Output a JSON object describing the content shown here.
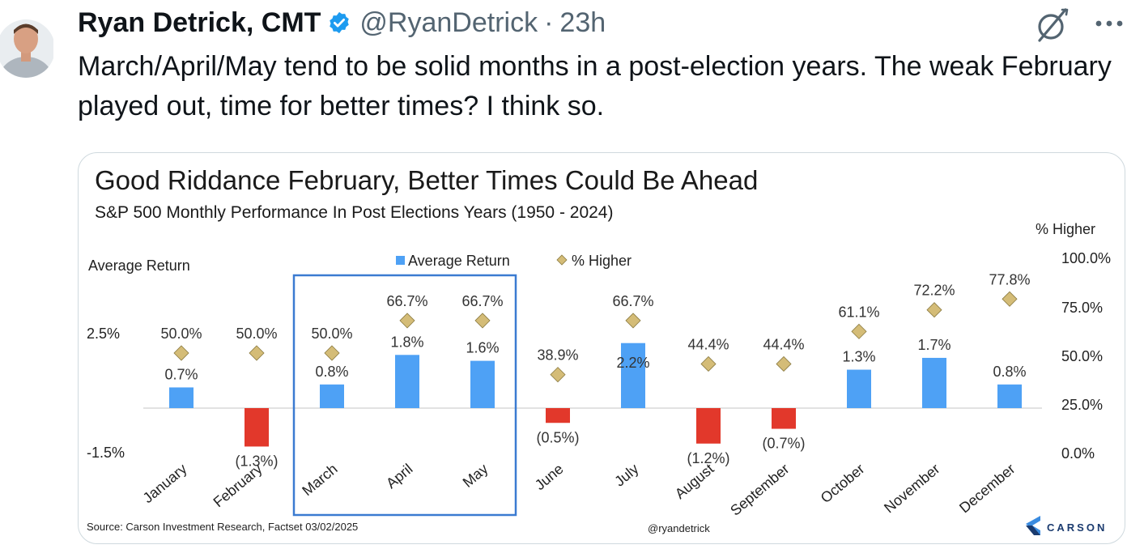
{
  "tweet": {
    "author_name": "Ryan Detrick, CMT",
    "handle": "@RyanDetrick",
    "separator": "·",
    "time": "23h",
    "text": "March/April/May tend to be solid months in a post-election years. The weak February played out, time for better times? I think so.",
    "verified": true
  },
  "colors": {
    "verified": "#1d9bf0",
    "positive_bar": "#4ea1f5",
    "negative_bar": "#e2382b",
    "diamond": "#d4bc77",
    "highlight_box": "#3b7bd1"
  },
  "icons": {
    "grok": "grok-slash-icon",
    "more": "more-dots-icon",
    "verified": "verified-badge-icon"
  },
  "chart_data": {
    "type": "bar",
    "title": "Good Riddance February, Better Times Could Be Ahead",
    "subtitle": "S&P 500 Monthly Performance In Post Elections Years (1950 - 2024)",
    "left_axis_label": "Average Return",
    "right_axis_label": "% Higher",
    "left_ticks": [
      "2.5%",
      "-1.5%"
    ],
    "right_ticks": [
      "100.0%",
      "75.0%",
      "50.0%",
      "25.0%",
      "0.0%"
    ],
    "legend": [
      "Average Return",
      "% Higher"
    ],
    "legend_position": "top-center",
    "categories": [
      "January",
      "February",
      "March",
      "April",
      "May",
      "June",
      "July",
      "August",
      "September",
      "October",
      "November",
      "December"
    ],
    "series": [
      {
        "name": "Average Return",
        "values": [
          0.7,
          -1.3,
          0.8,
          1.8,
          1.6,
          -0.5,
          2.2,
          -1.2,
          -0.7,
          1.3,
          1.7,
          0.8
        ],
        "labels": [
          "0.7%",
          "(1.3%)",
          "0.8%",
          "1.8%",
          "1.6%",
          "(0.5%)",
          "2.2%",
          "(1.2%)",
          "(0.7%)",
          "1.3%",
          "1.7%",
          "0.8%"
        ]
      },
      {
        "name": "% Higher",
        "values": [
          50.0,
          50.0,
          50.0,
          66.7,
          66.7,
          38.9,
          66.7,
          44.4,
          44.4,
          61.1,
          72.2,
          77.8
        ],
        "labels": [
          "50.0%",
          "50.0%",
          "50.0%",
          "66.7%",
          "66.7%",
          "38.9%",
          "66.7%",
          "44.4%",
          "44.4%",
          "61.1%",
          "72.2%",
          "77.8%"
        ]
      }
    ],
    "highlighted_categories": [
      "March",
      "April",
      "May"
    ],
    "source": "Source: Carson Investment Research, Factset 03/02/2025",
    "watermark": "@ryandetrick",
    "brand": "CARSON"
  }
}
